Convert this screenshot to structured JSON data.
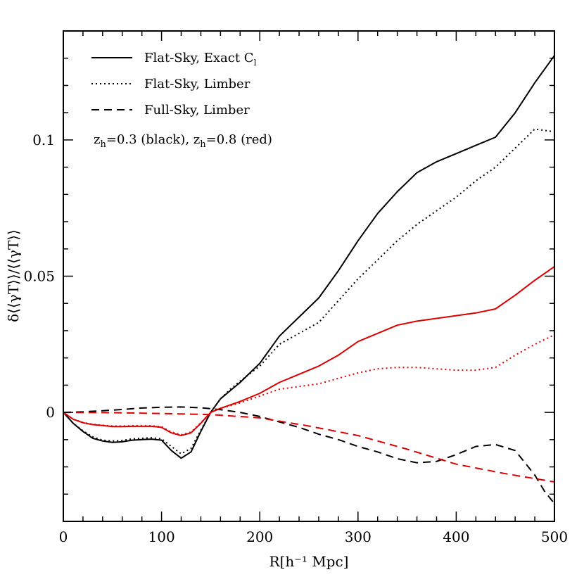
{
  "chart_data": {
    "type": "line",
    "xlabel": "R[h⁻¹ Mpc]",
    "ylabel": "δ⟨⟨γT⟩⟩/⟨⟨γT⟩⟩",
    "xlim": [
      0,
      500
    ],
    "ylim": [
      -0.04,
      0.14
    ],
    "x_ticks": [
      0,
      100,
      200,
      300,
      400,
      500
    ],
    "x_tick_labels": [
      "0",
      "100",
      "200",
      "300",
      "400",
      "500"
    ],
    "y_ticks": [
      0,
      0.05,
      0.1
    ],
    "y_tick_labels": [
      "0",
      "0.05",
      "0.1"
    ],
    "grid": false,
    "legend_position": "top-left",
    "legend": {
      "entries": [
        {
          "label": "Flat-Sky, Exact C",
          "sub": "l",
          "style": "solid"
        },
        {
          "label": "Flat-Sky, Limber",
          "style": "dotted"
        },
        {
          "label": "Full-Sky, Limber",
          "style": "dashed"
        }
      ],
      "note": {
        "parts": [
          "z",
          "h",
          "=0.3 (black), z",
          "h",
          "=0.8 (red)"
        ]
      }
    },
    "series": [
      {
        "style": "solid",
        "color": "#000000",
        "x": [
          0,
          10,
          20,
          30,
          40,
          50,
          60,
          70,
          80,
          90,
          100,
          110,
          120,
          130,
          140,
          150,
          160,
          170,
          180,
          200,
          220,
          240,
          260,
          280,
          300,
          320,
          340,
          360,
          380,
          400,
          420,
          440,
          460,
          480,
          500
        ],
        "y": [
          0,
          -0.004,
          -0.007,
          -0.0095,
          -0.0105,
          -0.011,
          -0.0108,
          -0.0102,
          -0.01,
          -0.0098,
          -0.0102,
          -0.014,
          -0.0168,
          -0.0145,
          -0.007,
          0.0,
          0.005,
          0.008,
          0.011,
          0.018,
          0.028,
          0.035,
          0.042,
          0.052,
          0.063,
          0.073,
          0.081,
          0.088,
          0.092,
          0.095,
          0.098,
          0.101,
          0.11,
          0.121,
          0.131
        ]
      },
      {
        "style": "dotted",
        "color": "#000000",
        "x": [
          0,
          10,
          20,
          30,
          40,
          50,
          60,
          70,
          80,
          90,
          100,
          110,
          120,
          130,
          140,
          150,
          160,
          170,
          180,
          200,
          220,
          240,
          260,
          280,
          300,
          320,
          340,
          360,
          380,
          400,
          420,
          440,
          460,
          480,
          500
        ],
        "y": [
          0,
          -0.004,
          -0.0068,
          -0.009,
          -0.0102,
          -0.0105,
          -0.0103,
          -0.0097,
          -0.0095,
          -0.0093,
          -0.0097,
          -0.0125,
          -0.0152,
          -0.0132,
          -0.0065,
          0.0,
          0.005,
          0.0085,
          0.0115,
          0.017,
          0.025,
          0.029,
          0.033,
          0.041,
          0.049,
          0.056,
          0.063,
          0.069,
          0.074,
          0.079,
          0.085,
          0.09,
          0.097,
          0.104,
          0.103
        ]
      },
      {
        "style": "dashed",
        "color": "#000000",
        "x": [
          0,
          20,
          40,
          60,
          80,
          100,
          120,
          140,
          160,
          180,
          200,
          220,
          240,
          260,
          280,
          300,
          320,
          340,
          360,
          380,
          400,
          420,
          440,
          460,
          480,
          490,
          500
        ],
        "y": [
          0,
          0.0002,
          0.0006,
          0.0011,
          0.0016,
          0.0019,
          0.002,
          0.0017,
          0.001,
          0.0,
          -0.0015,
          -0.0035,
          -0.0055,
          -0.008,
          -0.01,
          -0.0125,
          -0.0145,
          -0.017,
          -0.0185,
          -0.018,
          -0.0155,
          -0.0125,
          -0.0118,
          -0.014,
          -0.023,
          -0.029,
          -0.0335
        ]
      },
      {
        "style": "solid",
        "color": "#dd0000",
        "x": [
          0,
          10,
          20,
          30,
          40,
          50,
          60,
          70,
          80,
          90,
          100,
          110,
          120,
          130,
          140,
          150,
          160,
          180,
          200,
          220,
          240,
          260,
          280,
          300,
          320,
          340,
          360,
          380,
          400,
          420,
          440,
          460,
          480,
          500
        ],
        "y": [
          0,
          -0.0025,
          -0.0038,
          -0.0045,
          -0.0048,
          -0.0052,
          -0.0052,
          -0.0051,
          -0.0051,
          -0.0051,
          -0.0055,
          -0.0075,
          -0.0085,
          -0.0075,
          -0.004,
          0.0,
          0.0015,
          0.004,
          0.007,
          0.011,
          0.014,
          0.017,
          0.021,
          0.026,
          0.029,
          0.032,
          0.0335,
          0.0345,
          0.0355,
          0.0365,
          0.038,
          0.043,
          0.0485,
          0.0535
        ]
      },
      {
        "style": "dotted",
        "color": "#dd0000",
        "x": [
          0,
          10,
          20,
          30,
          40,
          50,
          60,
          70,
          80,
          90,
          100,
          110,
          120,
          130,
          140,
          150,
          160,
          180,
          200,
          220,
          240,
          260,
          280,
          300,
          320,
          340,
          360,
          380,
          400,
          420,
          440,
          460,
          480,
          500
        ],
        "y": [
          0,
          -0.0025,
          -0.0037,
          -0.0044,
          -0.0047,
          -0.005,
          -0.005,
          -0.0049,
          -0.0049,
          -0.0049,
          -0.0053,
          -0.0072,
          -0.0082,
          -0.0072,
          -0.0038,
          0.0,
          0.0015,
          0.0035,
          0.006,
          0.0085,
          0.0095,
          0.0105,
          0.0125,
          0.0145,
          0.016,
          0.0165,
          0.0165,
          0.016,
          0.0155,
          0.0155,
          0.0165,
          0.021,
          0.025,
          0.0285
        ]
      },
      {
        "style": "dashed",
        "color": "#dd0000",
        "x": [
          0,
          50,
          100,
          150,
          200,
          250,
          300,
          350,
          400,
          450,
          500
        ],
        "y": [
          0,
          -0.0001,
          -0.0004,
          -0.0008,
          -0.002,
          -0.005,
          -0.0085,
          -0.0135,
          -0.019,
          -0.0225,
          -0.0255
        ]
      }
    ]
  }
}
